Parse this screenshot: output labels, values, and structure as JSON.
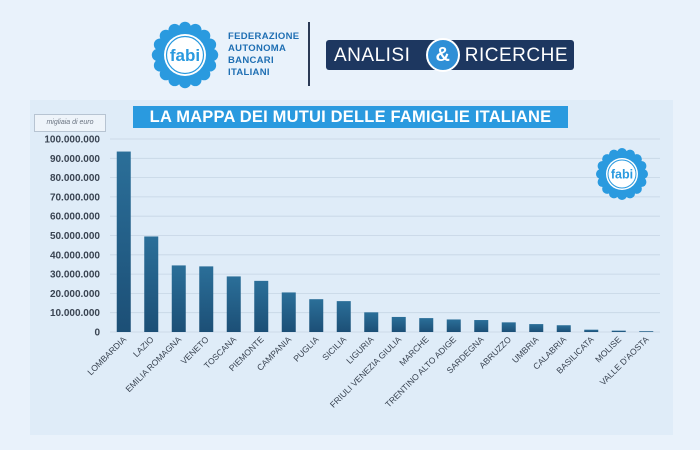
{
  "header": {
    "logo_text": "fabi",
    "federation_lines": [
      "FEDERAZIONE",
      "AUTONOMA",
      "BANCARI",
      "ITALIANI"
    ],
    "analisi_left": "ANALISI",
    "analisi_amp": "&",
    "analisi_right": "RICERCHE"
  },
  "unit_label": "migliaia di euro",
  "colors": {
    "bar_top": "#2b6f99",
    "bar_bottom": "#1c4f76",
    "title_bg": "#2a9adf",
    "brand_blue": "#2a9adf",
    "navy": "#1d3760"
  },
  "chart_data": {
    "type": "bar",
    "title": "LA MAPPA DEI MUTUI DELLE FAMIGLIE ITALIANE",
    "categories": [
      "LOMBARDIA",
      "LAZIO",
      "EMILIA ROMAGNA",
      "VENETO",
      "TOSCANA",
      "PIEMONTE",
      "CAMPANIA",
      "PUGLIA",
      "SICILIA",
      "LIGURIA",
      "FRIULI VENEZIA GIULIA",
      "MARCHE",
      "TRENTINO ALTO ADIGE",
      "SARDEGNA",
      "ABRUZZO",
      "UMBRIA",
      "CALABRIA",
      "BASILICATA",
      "MOLISE",
      "VALLE D'AOSTA"
    ],
    "values": [
      93500000,
      49500000,
      34500000,
      34000000,
      28800000,
      26500000,
      20500000,
      17000000,
      16000000,
      10200000,
      7800000,
      7200000,
      6500000,
      6200000,
      5000000,
      4100000,
      3500000,
      1200000,
      700000,
      400000
    ],
    "ylim": [
      0,
      100000000
    ],
    "yticks": [
      0,
      10000000,
      20000000,
      30000000,
      40000000,
      50000000,
      60000000,
      70000000,
      80000000,
      90000000,
      100000000
    ],
    "ytick_labels": [
      "0",
      "10.000.000",
      "20.000.000",
      "30.000.000",
      "40.000.000",
      "50.000.000",
      "60.000.000",
      "70.000.000",
      "80.000.000",
      "90.000.000",
      "100.000.000"
    ],
    "grid": true,
    "legend": "none"
  }
}
